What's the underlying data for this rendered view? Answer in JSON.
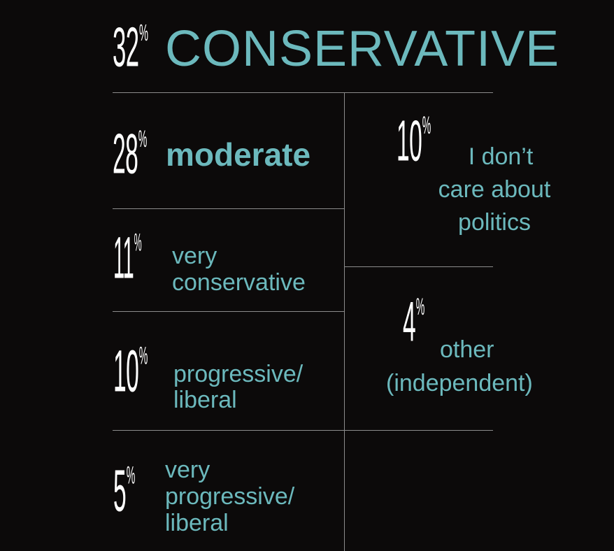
{
  "chart_data": {
    "type": "table",
    "items": [
      {
        "value": 32,
        "percent_label": "32",
        "label": "CONSERVATIVE"
      },
      {
        "value": 28,
        "percent_label": "28",
        "label": "moderate"
      },
      {
        "value": 11,
        "percent_label": "11",
        "label_lines": [
          "very",
          "conservative"
        ]
      },
      {
        "value": 10,
        "percent_label": "10",
        "label_lines": [
          "progressive/",
          "liberal"
        ]
      },
      {
        "value": 5,
        "percent_label": "5",
        "label_lines": [
          "very",
          "progressive/",
          "liberal"
        ]
      },
      {
        "value": 10,
        "percent_label": "10",
        "label_lines": [
          "I don’t",
          "care about",
          "politics"
        ]
      },
      {
        "value": 4,
        "percent_label": "4",
        "label_lines": [
          "other",
          "(independent)"
        ]
      }
    ],
    "percent_sign": "%"
  },
  "colors": {
    "background": "#0c0a0a",
    "number": "#ffffff",
    "label": "#6cb9bd",
    "rule": "#8c8c8c"
  }
}
